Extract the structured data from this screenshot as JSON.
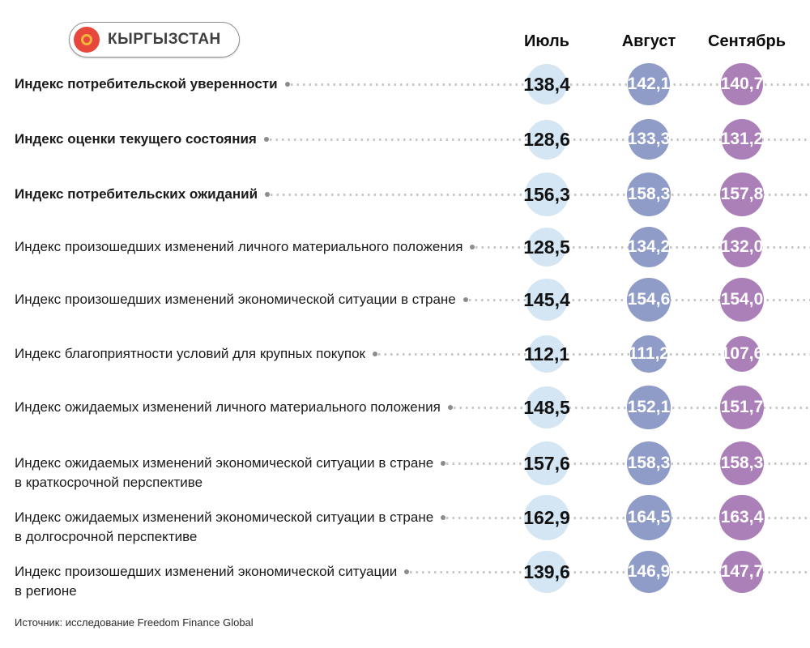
{
  "badge": {
    "label": "КЫРГЫЗСТАН"
  },
  "source": "Источник: исследование Freedom Finance Global",
  "colors": {
    "bubbles": [
      "#d4e6f3",
      "#8f9cc7",
      "#ab7fb8"
    ],
    "july_text": "#111111",
    "aug_sep_text": "#ffffff",
    "leader_dots": "#c7c7c7",
    "label_text": "#1b1b1b",
    "flag_red": "#e8473c",
    "flag_yellow": "#f3b53e"
  },
  "chart_data": {
    "type": "table",
    "title": "КЫРГЫЗСТАН",
    "columns": [
      "Июль",
      "Август",
      "Сентябрь"
    ],
    "value_format": "comma-decimal, one fraction digit",
    "legend_position": "top",
    "rows": [
      {
        "label": "Индекс потребительской уверенности",
        "label_line2": "",
        "bold": true,
        "values": [
          138.4,
          142.1,
          140.7
        ]
      },
      {
        "label": "Индекс оценки текущего состояния",
        "label_line2": "",
        "bold": true,
        "values": [
          128.6,
          133.3,
          131.2
        ]
      },
      {
        "label": "Индекс потребительских ожиданий",
        "label_line2": "",
        "bold": true,
        "values": [
          156.3,
          158.3,
          157.8
        ]
      },
      {
        "label": "Индекс произошедших изменений личного материального положения",
        "label_line2": "",
        "bold": false,
        "values": [
          128.5,
          134.2,
          132.0
        ]
      },
      {
        "label": "Индекс произошедших изменений экономической ситуации в стране",
        "label_line2": "",
        "bold": false,
        "values": [
          145.4,
          154.6,
          154.0
        ]
      },
      {
        "label": "Индекс благоприятности условий для крупных покупок",
        "label_line2": "",
        "bold": false,
        "values": [
          112.1,
          111.2,
          107.6
        ]
      },
      {
        "label": "Индекс ожидаемых изменений личного материального положения",
        "label_line2": "",
        "bold": false,
        "values": [
          148.5,
          152.1,
          151.7
        ]
      },
      {
        "label": "Индекс ожидаемых изменений экономической ситуации в стране",
        "label_line2": "в краткосрочной перспективе",
        "bold": false,
        "values": [
          157.6,
          158.3,
          158.3
        ]
      },
      {
        "label": "Индекс ожидаемых изменений экономической ситуации в стране",
        "label_line2": "в долгосрочной перспективе",
        "bold": false,
        "values": [
          162.9,
          164.5,
          163.4
        ]
      },
      {
        "label": "Индекс произошедших изменений экономической ситуации",
        "label_line2": "в регионе",
        "bold": false,
        "values": [
          139.6,
          146.9,
          147.7
        ]
      }
    ],
    "layout": {
      "row_centers": [
        104,
        172,
        240,
        305,
        370,
        437,
        503,
        572,
        639,
        706
      ],
      "col_centers": [
        675,
        801,
        916
      ],
      "header_centers": [
        675,
        801,
        922
      ],
      "bubble_diameter_formula": "4.32 * sqrt(value)"
    }
  }
}
